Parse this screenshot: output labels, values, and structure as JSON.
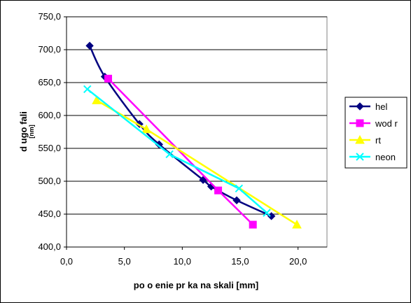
{
  "chart_data": {
    "type": "line",
    "title": "",
    "xlabel": "po o enie pr   ka na skali [mm]",
    "ylabel": "d ugo   fali",
    "ylabel_sub": "[nm]",
    "xlim": [
      0,
      22.5
    ],
    "ylim": [
      400,
      750
    ],
    "x_ticks": [
      0,
      5,
      10,
      15,
      20
    ],
    "x_tick_labels": [
      "0,0",
      "5,0",
      "10,0",
      "15,0",
      "20,0"
    ],
    "y_ticks": [
      400,
      450,
      500,
      550,
      600,
      650,
      700,
      750
    ],
    "y_tick_labels": [
      "400,0",
      "450,0",
      "500,0",
      "550,0",
      "600,0",
      "650,0",
      "700,0",
      "750,0"
    ],
    "grid": "horizontal",
    "legend_position": "right",
    "series": [
      {
        "name": "hel",
        "color": "#000080",
        "marker": "diamond",
        "points": [
          [
            2.0,
            706
          ],
          [
            3.3,
            659
          ],
          [
            6.3,
            587
          ],
          [
            8.0,
            556
          ],
          [
            11.8,
            502
          ],
          [
            12.5,
            492
          ],
          [
            14.7,
            471
          ],
          [
            17.7,
            447
          ]
        ]
      },
      {
        "name": "wod r",
        "color": "#FF00FF",
        "marker": "square",
        "points": [
          [
            3.6,
            656
          ],
          [
            13.1,
            486
          ],
          [
            16.1,
            434
          ]
        ]
      },
      {
        "name": "rt",
        "color": "#FFFF00",
        "marker": "triangle",
        "points": [
          [
            2.6,
            623
          ],
          [
            6.9,
            579
          ],
          [
            19.9,
            434
          ]
        ]
      },
      {
        "name": "neon",
        "color": "#00FFFF",
        "marker": "x",
        "points": [
          [
            1.8,
            640
          ],
          [
            8.9,
            541
          ],
          [
            14.9,
            489
          ],
          [
            17.3,
            452
          ]
        ]
      }
    ]
  }
}
